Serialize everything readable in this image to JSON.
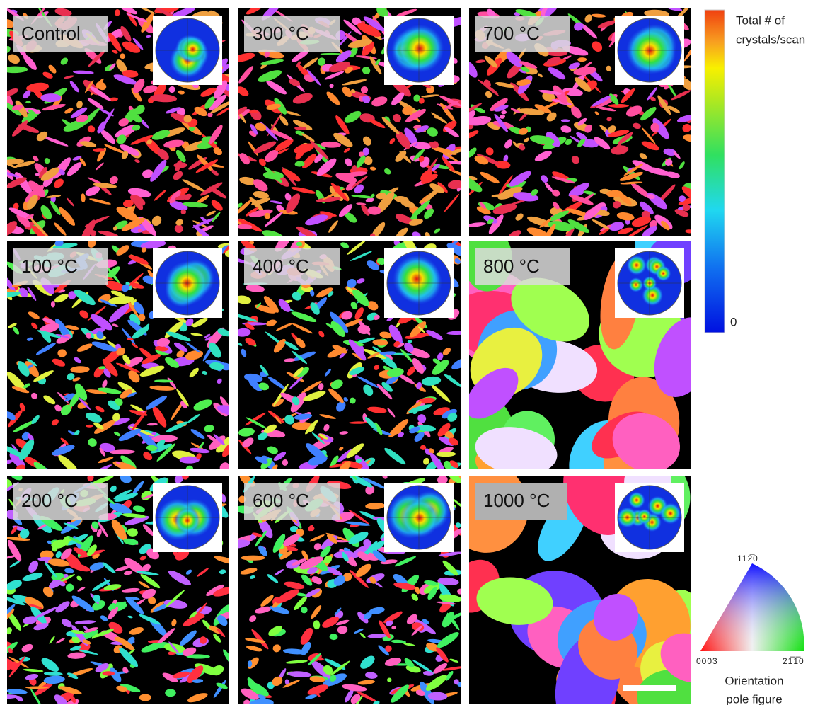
{
  "panels": [
    {
      "label": "Control"
    },
    {
      "label": "300 °C"
    },
    {
      "label": "700 °C"
    },
    {
      "label": "100 °C"
    },
    {
      "label": "400 °C"
    },
    {
      "label": "800 °C"
    },
    {
      "label": "200 °C"
    },
    {
      "label": "600 °C"
    },
    {
      "label": "1000 °C"
    }
  ],
  "colorbar": {
    "title_lines": [
      "Total # of",
      "crystals/scan"
    ],
    "min_label": "0"
  },
  "orientation_key": {
    "top_label": "112̅0",
    "left_label": "0003",
    "right_label": "21̅1̅0",
    "caption_lines": [
      "Orientation",
      "pole figure"
    ]
  }
}
